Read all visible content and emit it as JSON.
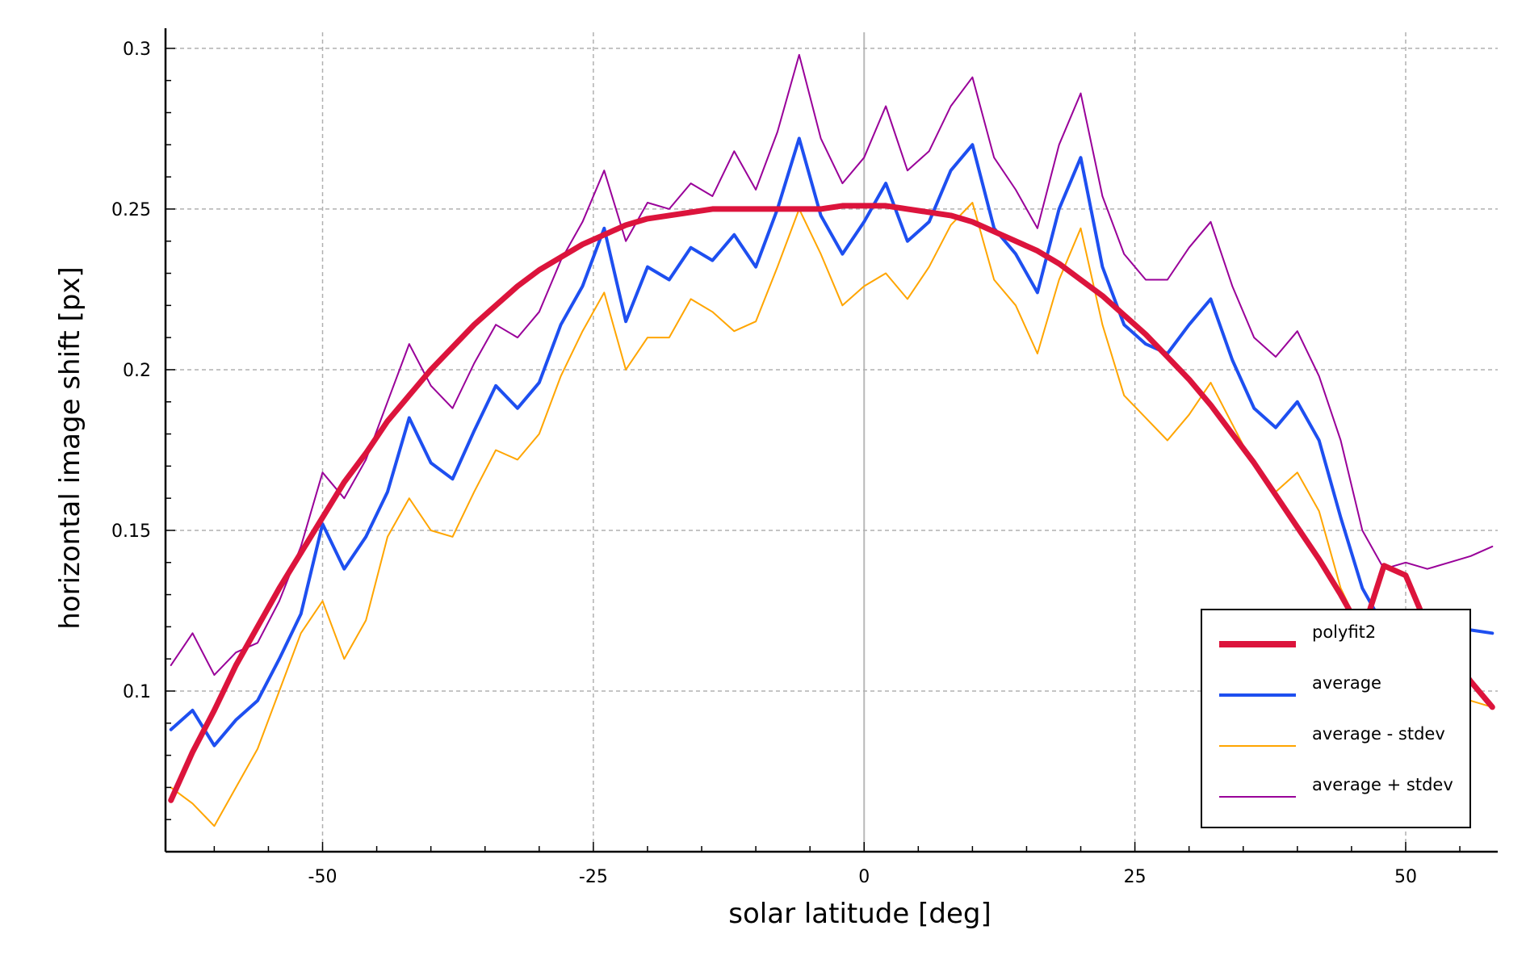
{
  "chart_data": {
    "type": "line",
    "title": "",
    "xlabel": "solar latitude [deg]",
    "ylabel": "horizontal image shift [px]",
    "xlim": [
      -64.5,
      58.5
    ],
    "ylim": [
      0.05,
      0.305
    ],
    "xticks": [
      -50,
      -25,
      0,
      25,
      50
    ],
    "xtick_labels": [
      "-50",
      "-25",
      "0",
      "25",
      "50"
    ],
    "yticks": [
      0.1,
      0.15,
      0.2,
      0.25,
      0.3
    ],
    "ytick_labels": [
      "0.1",
      "0.15",
      "0.2",
      "0.25",
      "0.3"
    ],
    "grid": true,
    "legend_position": "bottom-right",
    "x": [
      -64,
      -62,
      -60,
      -58,
      -56,
      -54,
      -52,
      -50,
      -48,
      -46,
      -44,
      -42,
      -40,
      -38,
      -36,
      -34,
      -32,
      -30,
      -28,
      -26,
      -24,
      -22,
      -20,
      -18,
      -16,
      -14,
      -12,
      -10,
      -8,
      -6,
      -4,
      -2,
      0,
      2,
      4,
      6,
      8,
      10,
      12,
      14,
      16,
      18,
      20,
      22,
      24,
      26,
      28,
      30,
      32,
      34,
      36,
      38,
      40,
      42,
      44,
      46,
      48,
      50,
      52,
      54,
      56,
      58
    ],
    "series": [
      {
        "name": "polyfit2",
        "color": "#dc143c",
        "width": 7,
        "values": [
          0.066,
          0.081,
          0.094,
          0.108,
          0.12,
          0.132,
          0.143,
          0.154,
          0.165,
          0.174,
          0.184,
          0.192,
          0.2,
          0.207,
          0.214,
          0.22,
          0.226,
          0.231,
          0.235,
          0.239,
          0.242,
          0.245,
          0.247,
          0.248,
          0.249,
          0.25,
          0.25,
          0.25,
          0.25,
          0.25,
          0.25,
          0.251,
          0.251,
          0.251,
          0.25,
          0.249,
          0.248,
          0.246,
          0.243,
          0.24,
          0.237,
          0.233,
          0.228,
          0.223,
          0.217,
          0.211,
          0.204,
          0.197,
          0.189,
          0.18,
          0.171,
          0.161,
          0.151,
          0.141,
          0.13,
          0.118,
          0.139,
          0.136,
          0.12,
          0.112,
          0.103,
          0.095
        ]
      },
      {
        "name": "average",
        "color": "#1e4ff0",
        "width": 4,
        "values": [
          0.088,
          0.094,
          0.083,
          0.091,
          0.097,
          0.11,
          0.124,
          0.152,
          0.138,
          0.148,
          0.162,
          0.185,
          0.171,
          0.166,
          0.181,
          0.195,
          0.188,
          0.196,
          0.214,
          0.226,
          0.244,
          0.215,
          0.232,
          0.228,
          0.238,
          0.234,
          0.242,
          0.232,
          0.25,
          0.272,
          0.248,
          0.236,
          0.246,
          0.258,
          0.24,
          0.246,
          0.262,
          0.27,
          0.244,
          0.236,
          0.224,
          0.25,
          0.266,
          0.232,
          0.214,
          0.208,
          0.205,
          0.214,
          0.222,
          0.203,
          0.188,
          0.182,
          0.19,
          0.178,
          0.154,
          0.132,
          0.12,
          0.123,
          0.118,
          0.121,
          0.119,
          0.118
        ]
      },
      {
        "name": "average - stdev",
        "color": "#ffa500",
        "width": 2,
        "values": [
          0.07,
          0.065,
          0.058,
          0.07,
          0.082,
          0.1,
          0.118,
          0.128,
          0.11,
          0.122,
          0.148,
          0.16,
          0.15,
          0.148,
          0.162,
          0.175,
          0.172,
          0.18,
          0.198,
          0.212,
          0.224,
          0.2,
          0.21,
          0.21,
          0.222,
          0.218,
          0.212,
          0.215,
          0.232,
          0.25,
          0.236,
          0.22,
          0.226,
          0.23,
          0.222,
          0.232,
          0.245,
          0.252,
          0.228,
          0.22,
          0.205,
          0.228,
          0.244,
          0.214,
          0.192,
          0.185,
          0.178,
          0.186,
          0.196,
          0.183,
          0.17,
          0.162,
          0.168,
          0.156,
          0.132,
          0.118,
          0.11,
          0.115,
          0.11,
          0.103,
          0.097,
          0.095
        ]
      },
      {
        "name": "average + stdev",
        "color": "#990099",
        "width": 2,
        "values": [
          0.108,
          0.118,
          0.105,
          0.112,
          0.115,
          0.128,
          0.145,
          0.168,
          0.16,
          0.172,
          0.19,
          0.208,
          0.195,
          0.188,
          0.202,
          0.214,
          0.21,
          0.218,
          0.234,
          0.246,
          0.262,
          0.24,
          0.252,
          0.25,
          0.258,
          0.254,
          0.268,
          0.256,
          0.274,
          0.298,
          0.272,
          0.258,
          0.266,
          0.282,
          0.262,
          0.268,
          0.282,
          0.291,
          0.266,
          0.256,
          0.244,
          0.27,
          0.286,
          0.254,
          0.236,
          0.228,
          0.228,
          0.238,
          0.246,
          0.226,
          0.21,
          0.204,
          0.212,
          0.198,
          0.178,
          0.15,
          0.138,
          0.14,
          0.138,
          0.14,
          0.142,
          0.145
        ]
      }
    ]
  }
}
